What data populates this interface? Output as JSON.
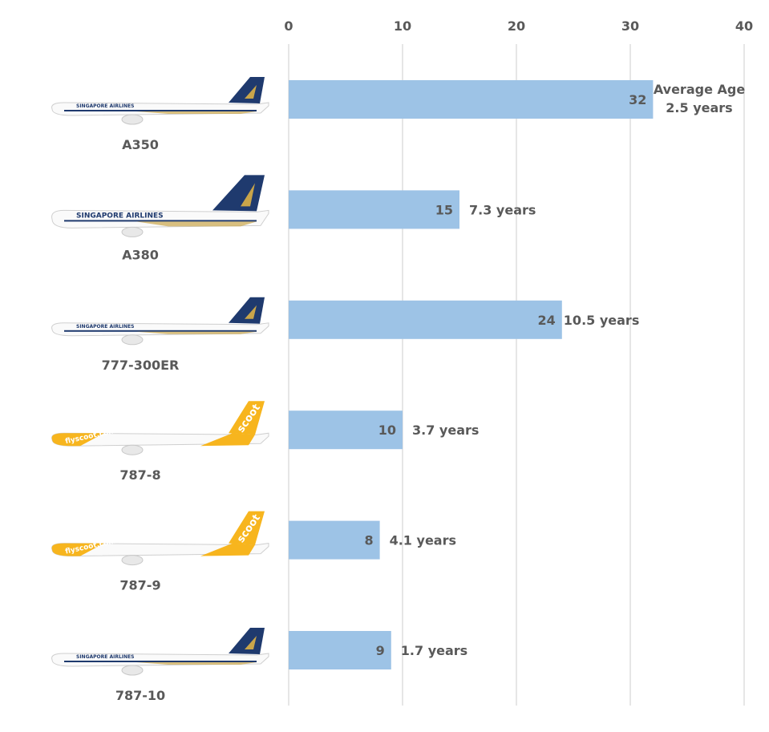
{
  "chart_data": {
    "type": "bar",
    "orientation": "horizontal",
    "categories": [
      "A350",
      "A380",
      "777-300ER",
      "787-8",
      "787-9",
      "787-10"
    ],
    "values": [
      32,
      15,
      24,
      10,
      8,
      9
    ],
    "annotation_title": "Average Age",
    "age_labels": [
      "2.5 years",
      "7.3 years",
      "10.5 years",
      "3.7 years",
      "4.1 years",
      "1.7 years"
    ],
    "liveries": [
      "sia",
      "sia",
      "sia",
      "scoot",
      "scoot",
      "sia"
    ],
    "livery_text": {
      "sia": "SINGAPORE AIRLINES",
      "scoot_body": "flyscoot.com",
      "scoot_tail": "scoot"
    },
    "xlim": [
      0,
      40
    ],
    "xticks": [
      0,
      10,
      20,
      30,
      40
    ],
    "xaxis_position": "top",
    "grid": true,
    "legend": "none",
    "title": "",
    "xlabel": "",
    "ylabel": "",
    "colors": {
      "bar": "#9dc3e6",
      "grid": "#d9d9d9",
      "text": "#595959",
      "sia_navy": "#1f3a6e",
      "sia_gold": "#c9a54a",
      "scoot_yellow": "#f7b51e"
    }
  }
}
